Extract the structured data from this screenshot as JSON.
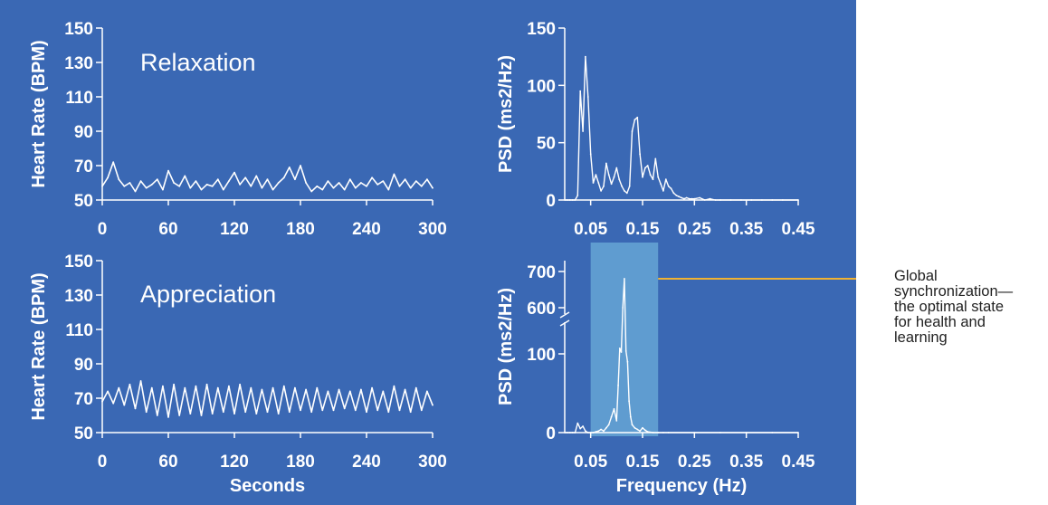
{
  "colors": {
    "panel_bg": "#3a68b4",
    "line": "#ffffff",
    "highlight_fill": "#8fdcf2",
    "callout_line": "#f0b232",
    "accent_tick": "#f4c22e",
    "callout_text": "#222222"
  },
  "callout": {
    "text": "Global\nsynchronization—\nthe optimal state\nfor health and\n learning"
  },
  "chart_data": [
    {
      "type": "line",
      "title": "Relaxation",
      "ylabel": "Heart Rate (BPM)",
      "xlabel": "",
      "xlim": [
        0,
        300
      ],
      "ylim": [
        50,
        150
      ],
      "x_ticks": [
        0,
        60,
        120,
        180,
        240,
        300
      ],
      "y_ticks": [
        50,
        70,
        90,
        110,
        130,
        150
      ],
      "x": [
        0,
        5,
        10,
        15,
        20,
        25,
        30,
        35,
        40,
        45,
        50,
        55,
        60,
        65,
        70,
        75,
        80,
        85,
        90,
        95,
        100,
        105,
        110,
        115,
        120,
        125,
        130,
        135,
        140,
        145,
        150,
        155,
        160,
        165,
        170,
        175,
        180,
        185,
        190,
        195,
        200,
        205,
        210,
        215,
        220,
        225,
        230,
        235,
        240,
        245,
        250,
        255,
        260,
        265,
        270,
        275,
        280,
        285,
        290,
        295,
        300
      ],
      "y": [
        58,
        63,
        72,
        62,
        58,
        60,
        55,
        61,
        57,
        59,
        62,
        56,
        67,
        60,
        58,
        64,
        57,
        61,
        56,
        59,
        58,
        62,
        56,
        61,
        66,
        59,
        63,
        58,
        64,
        57,
        62,
        56,
        60,
        63,
        69,
        62,
        70,
        60,
        55,
        58,
        56,
        61,
        57,
        60,
        56,
        62,
        57,
        60,
        58,
        63,
        59,
        61,
        56,
        65,
        58,
        62,
        57,
        61,
        58,
        62,
        57
      ]
    },
    {
      "type": "line",
      "title": "",
      "ylabel": "PSD (ms2/Hz)",
      "xlabel": "",
      "xlim": [
        0,
        0.45
      ],
      "ylim": [
        0,
        150
      ],
      "x_ticks": [
        0.05,
        0.15,
        0.25,
        0.35,
        0.45
      ],
      "x_tick_labels": [
        "0.05",
        "0.15",
        "0.25",
        "0.35",
        "0.45"
      ],
      "y_ticks": [
        0,
        50,
        100,
        150
      ],
      "y_tick_labels": [
        "0",
        "50",
        "100",
        "150"
      ],
      "highlight_tick": "150",
      "x": [
        0.0,
        0.005,
        0.01,
        0.015,
        0.02,
        0.025,
        0.03,
        0.035,
        0.04,
        0.045,
        0.05,
        0.055,
        0.06,
        0.065,
        0.07,
        0.075,
        0.08,
        0.085,
        0.09,
        0.095,
        0.1,
        0.105,
        0.11,
        0.115,
        0.12,
        0.125,
        0.13,
        0.135,
        0.14,
        0.145,
        0.15,
        0.155,
        0.16,
        0.165,
        0.17,
        0.175,
        0.18,
        0.185,
        0.19,
        0.195,
        0.2,
        0.205,
        0.21,
        0.215,
        0.22,
        0.225,
        0.23,
        0.235,
        0.24,
        0.245,
        0.25,
        0.26,
        0.27,
        0.28,
        0.29,
        0.3,
        0.32,
        0.34,
        0.36,
        0.38,
        0.4,
        0.42,
        0.45
      ],
      "y": [
        0,
        0,
        0,
        0,
        0,
        4,
        95,
        60,
        125,
        90,
        40,
        15,
        22,
        15,
        8,
        12,
        32,
        22,
        14,
        20,
        28,
        18,
        12,
        8,
        6,
        12,
        60,
        70,
        72,
        40,
        20,
        28,
        30,
        22,
        18,
        36,
        20,
        14,
        8,
        18,
        12,
        10,
        6,
        4,
        3,
        2,
        1,
        2,
        1,
        1,
        1,
        2,
        0,
        1,
        0,
        0,
        0,
        0,
        0,
        0,
        0,
        0,
        0
      ]
    },
    {
      "type": "line",
      "title": "Appreciation",
      "ylabel": "Heart Rate (BPM)",
      "xlabel": "Seconds",
      "xlim": [
        0,
        300
      ],
      "ylim": [
        50,
        150
      ],
      "x_ticks": [
        0,
        60,
        120,
        180,
        240,
        300
      ],
      "y_ticks": [
        50,
        70,
        90,
        110,
        130,
        150
      ],
      "x": [
        0,
        5,
        10,
        15,
        20,
        25,
        30,
        35,
        40,
        45,
        50,
        55,
        60,
        65,
        70,
        75,
        80,
        85,
        90,
        95,
        100,
        105,
        110,
        115,
        120,
        125,
        130,
        135,
        140,
        145,
        150,
        155,
        160,
        165,
        170,
        175,
        180,
        185,
        190,
        195,
        200,
        205,
        210,
        215,
        220,
        225,
        230,
        235,
        240,
        245,
        250,
        255,
        260,
        265,
        270,
        275,
        280,
        285,
        290,
        295,
        300
      ],
      "y": [
        68,
        74,
        67,
        76,
        66,
        78,
        64,
        80,
        62,
        76,
        60,
        77,
        59,
        78,
        60,
        76,
        61,
        77,
        60,
        78,
        61,
        76,
        62,
        77,
        61,
        78,
        62,
        76,
        61,
        75,
        62,
        76,
        61,
        77,
        62,
        76,
        63,
        75,
        62,
        76,
        63,
        74,
        63,
        75,
        64,
        74,
        63,
        75,
        62,
        76,
        63,
        74,
        62,
        77,
        63,
        75,
        62,
        76,
        63,
        74,
        66
      ]
    },
    {
      "type": "line",
      "title": "",
      "ylabel": "PSD (ms2/Hz)",
      "xlabel": "Frequency (Hz)",
      "xlim": [
        0,
        0.45
      ],
      "ylim": [
        0,
        700
      ],
      "axis_break": "between 100 and 600",
      "x_ticks": [
        0.05,
        0.15,
        0.25,
        0.35,
        0.45
      ],
      "x_tick_labels": [
        "0.05",
        "0.15",
        "0.25",
        "0.35",
        "0.45"
      ],
      "y_ticks": [
        0,
        100,
        600,
        700
      ],
      "y_tick_labels": [
        "0",
        "100",
        "600",
        "700"
      ],
      "highlight_tick": "700",
      "highlight_band": [
        0.05,
        0.18
      ],
      "x": [
        0.0,
        0.005,
        0.01,
        0.015,
        0.02,
        0.025,
        0.03,
        0.035,
        0.04,
        0.045,
        0.05,
        0.055,
        0.06,
        0.065,
        0.07,
        0.075,
        0.08,
        0.085,
        0.09,
        0.095,
        0.1,
        0.103,
        0.106,
        0.109,
        0.112,
        0.115,
        0.118,
        0.121,
        0.124,
        0.127,
        0.13,
        0.135,
        0.14,
        0.145,
        0.15,
        0.155,
        0.16,
        0.17,
        0.18,
        0.19,
        0.2,
        0.25,
        0.3,
        0.35,
        0.4,
        0.45
      ],
      "y": [
        0,
        0,
        0,
        0,
        0,
        12,
        5,
        8,
        2,
        0,
        0,
        0,
        1,
        2,
        4,
        2,
        6,
        10,
        20,
        30,
        15,
        60,
        160,
        120,
        600,
        680,
        130,
        90,
        40,
        20,
        10,
        6,
        4,
        2,
        6,
        3,
        1,
        0,
        0,
        0,
        0,
        0,
        0,
        0,
        0,
        0
      ]
    }
  ]
}
